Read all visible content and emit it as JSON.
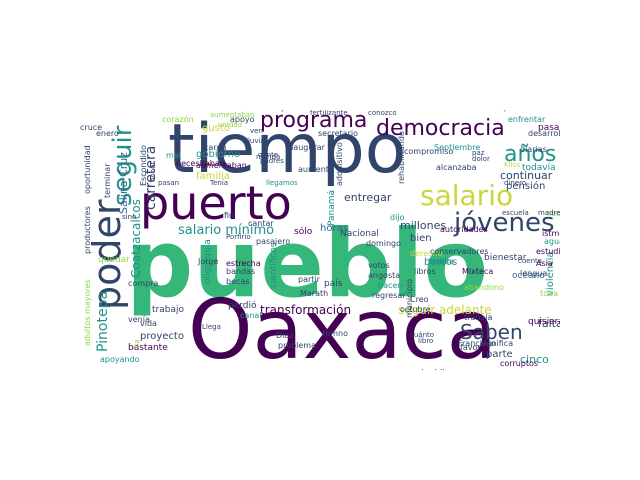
{
  "palette": {
    "dark_purple": "#440154",
    "navy": "#31446b",
    "blue": "#30688d",
    "teal": "#21918c",
    "green": "#35b779",
    "lime": "#8fd744",
    "yellow": "#c8d83a"
  },
  "words": [
    {
      "text": "pueblo",
      "color": "#35b779"
    },
    {
      "text": "Oaxaca",
      "color": "#440154"
    },
    {
      "text": "tiempo",
      "color": "#31446b"
    },
    {
      "text": "puerto",
      "color": "#440154"
    },
    {
      "text": "poder",
      "color": "#31446b"
    },
    {
      "text": "programa",
      "color": "#440154"
    },
    {
      "text": "democracia",
      "color": "#440154"
    },
    {
      "text": "salario",
      "color": "#c8d83a"
    },
    {
      "text": "jóvenes",
      "color": "#31446b"
    },
    {
      "text": "Saben",
      "color": "#31446b"
    },
    {
      "text": "años",
      "color": "#21918c"
    },
    {
      "text": "seguir",
      "color": "#21918c"
    },
    {
      "text": "salario mínimo",
      "color": "#21918c"
    },
    {
      "text": "transformación",
      "color": "#440154"
    },
    {
      "text": "seguir adelante",
      "color": "#c8d83a"
    },
    {
      "text": "Pinotepa",
      "color": "#21918c"
    },
    {
      "text": "carretera",
      "color": "#31446b"
    },
    {
      "text": "gobierno",
      "color": "#21918c"
    },
    {
      "text": "familia",
      "color": "#c8d83a"
    },
    {
      "text": "continuar",
      "color": "#31446b"
    },
    {
      "text": "pensión",
      "color": "#31446b"
    },
    {
      "text": "millones",
      "color": "#31446b"
    },
    {
      "text": "entregar",
      "color": "#31446b"
    },
    {
      "text": "Nacional",
      "color": "#31446b"
    },
    {
      "text": "barcos",
      "color": "#21918c"
    },
    {
      "text": "horas",
      "color": "#30688d"
    },
    {
      "text": "bien",
      "color": "#31446b"
    },
    {
      "text": "cinco",
      "color": "#21918c"
    },
    {
      "text": "falta",
      "color": "#31446b"
    },
    {
      "text": "parte",
      "color": "#31446b"
    },
    {
      "text": "Coatzacalcos",
      "color": "#21918c"
    },
    {
      "text": "Salina Cruz",
      "color": "#30688d"
    },
    {
      "text": "camino",
      "color": "#8fd744"
    },
    {
      "text": "proyecto",
      "color": "#31446b"
    },
    {
      "text": "bastante",
      "color": "#440154"
    },
    {
      "text": "trabajo",
      "color": "#31446b"
    },
    {
      "text": "oligarquía",
      "color": "#21918c"
    },
    {
      "text": "científicos",
      "color": "#21918c"
    },
    {
      "text": "violencia",
      "color": "#21918c"
    },
    {
      "text": "océano",
      "color": "#30688d"
    },
    {
      "text": "bienestar",
      "color": "#31446b"
    },
    {
      "text": "Mixteca",
      "color": "#440154"
    },
    {
      "text": "istmo",
      "color": "#440154"
    },
    {
      "text": "todavía",
      "color": "#21918c"
    },
    {
      "text": "pasar",
      "color": "#440154"
    },
    {
      "text": "desarrollo",
      "color": "#31446b"
    },
    {
      "text": "municipio",
      "color": "#31446b"
    },
    {
      "text": "apoyando",
      "color": "#21918c"
    },
    {
      "text": "productores",
      "color": "#31446b"
    },
    {
      "text": "adultos mayores",
      "color": "#8fd744"
    },
    {
      "text": "oportunidad",
      "color": "#31446b"
    },
    {
      "text": "mal",
      "color": "#21918c"
    },
    {
      "text": "gusto",
      "color": "#c8d83a"
    },
    {
      "text": "aumentaban",
      "color": "#440154"
    },
    {
      "text": "necesitaban",
      "color": "#440154"
    },
    {
      "text": "aumento",
      "color": "#31446b"
    },
    {
      "text": "sólo",
      "color": "#440154"
    },
    {
      "text": "Panamá",
      "color": "#21918c"
    },
    {
      "text": "país",
      "color": "#31446b"
    },
    {
      "text": "domingo",
      "color": "#31446b"
    },
    {
      "text": "libros",
      "color": "#31446b"
    },
    {
      "text": "decidir",
      "color": "#31446b"
    },
    {
      "text": "tren",
      "color": "#21918c"
    },
    {
      "text": "derecho",
      "color": "#c8d83a"
    },
    {
      "text": "quisieran",
      "color": "#440154"
    },
    {
      "text": "corruptos",
      "color": "#440154"
    },
    {
      "text": "significa",
      "color": "#31446b"
    },
    {
      "text": "Asia",
      "color": "#440154"
    },
    {
      "text": "agua",
      "color": "#21918c"
    },
    {
      "text": "estudio",
      "color": "#440154"
    },
    {
      "text": "toda",
      "color": "#8fd744"
    },
    {
      "text": "necesito",
      "color": "#8fd744"
    },
    {
      "text": "dijo",
      "color": "#21918c"
    },
    {
      "text": "autoridades",
      "color": "#440154"
    },
    {
      "text": "corazón",
      "color": "#8fd744"
    },
    {
      "text": "apoyo",
      "color": "#31446b"
    },
    {
      "text": "comprar",
      "color": "#440154"
    },
    {
      "text": "justicia",
      "color": "#21918c"
    },
    {
      "text": "enfrentar",
      "color": "#21918c"
    },
    {
      "text": "diarias",
      "color": "#31446b"
    },
    {
      "text": "secretario",
      "color": "#31446b"
    },
    {
      "text": "carga",
      "color": "#31446b"
    },
    {
      "text": "inaugurar",
      "color": "#31446b"
    },
    {
      "text": "compromiso",
      "color": "#31446b"
    },
    {
      "text": "terminar",
      "color": "#31446b"
    },
    {
      "text": "quedar",
      "color": "#8fd744"
    },
    {
      "text": "cruce",
      "color": "#31446b"
    },
    {
      "text": "compra",
      "color": "#31446b"
    },
    {
      "text": "venía",
      "color": "#31446b"
    },
    {
      "text": "vida",
      "color": "#31446b"
    },
    {
      "text": "canal",
      "color": "#21918c"
    },
    {
      "text": "perdió",
      "color": "#31446b"
    },
    {
      "text": "Jorge",
      "color": "#31446b"
    },
    {
      "text": "bandas",
      "color": "#31446b"
    },
    {
      "text": "becas",
      "color": "#31446b"
    },
    {
      "text": "estrecha",
      "color": "#440154"
    },
    {
      "text": "partir",
      "color": "#31446b"
    },
    {
      "text": "Marath",
      "color": "#31446b"
    },
    {
      "text": "angosta",
      "color": "#31446b"
    },
    {
      "text": "votos",
      "color": "#31446b"
    },
    {
      "text": "hacen",
      "color": "#21918c"
    },
    {
      "text": "regresar",
      "color": "#31446b"
    },
    {
      "text": "octubre",
      "color": "#31446b"
    },
    {
      "text": "trabaja",
      "color": "#31446b"
    },
    {
      "text": "abandono",
      "color": "#8fd744"
    },
    {
      "text": "Francisco",
      "color": "#31446b"
    },
    {
      "text": "favor",
      "color": "#31446b"
    },
    {
      "text": "lengua",
      "color": "#31446b"
    },
    {
      "text": "cuenta",
      "color": "#31446b"
    },
    {
      "text": "alcanzaba",
      "color": "#31446b"
    },
    {
      "text": "cantar",
      "color": "#31446b"
    },
    {
      "text": "fin",
      "color": "#31446b"
    },
    {
      "text": "pasajero",
      "color": "#31446b"
    },
    {
      "text": "Porfirio",
      "color": "#31446b"
    },
    {
      "text": "ven",
      "color": "#31446b"
    },
    {
      "text": "lluvia",
      "color": "#31446b"
    },
    {
      "text": "padres",
      "color": "#31446b"
    },
    {
      "text": "manda",
      "color": "#31446b"
    },
    {
      "text": "gente",
      "color": "#31446b"
    },
    {
      "text": "Escondido",
      "color": "#31446b"
    },
    {
      "text": "honor",
      "color": "#31446b"
    },
    {
      "text": "pasan",
      "color": "#31446b"
    },
    {
      "text": "enero",
      "color": "#31446b"
    },
    {
      "text": "sino",
      "color": "#31446b"
    },
    {
      "text": "Creo",
      "color": "#31446b"
    },
    {
      "text": "Díaz",
      "color": "#31446b"
    },
    {
      "text": "problema",
      "color": "#31446b"
    },
    {
      "text": "Himno",
      "color": "#31446b"
    },
    {
      "text": "Llega",
      "color": "#31446b"
    },
    {
      "text": "libro",
      "color": "#31446b"
    },
    {
      "text": "cuánto",
      "color": "#31446b"
    },
    {
      "text": "Kilos",
      "color": "#c8d83a"
    },
    {
      "text": "tortilla",
      "color": "#21918c"
    },
    {
      "text": "conservadores",
      "color": "#31446b"
    },
    {
      "text": "escuela",
      "color": "#31446b"
    },
    {
      "text": "madres",
      "color": "#31446b"
    },
    {
      "text": "dinero",
      "color": "#31446b"
    },
    {
      "text": "dolor",
      "color": "#31446b"
    },
    {
      "text": "paz",
      "color": "#31446b"
    },
    {
      "text": "Septiembre",
      "color": "#21918c"
    },
    {
      "text": "adquisitivo",
      "color": "#31446b"
    },
    {
      "text": "rehabilitando",
      "color": "#31446b"
    },
    {
      "text": "fertilizante",
      "color": "#31446b"
    },
    {
      "text": "conozco",
      "color": "#31446b"
    },
    {
      "text": "unidad",
      "color": "#8fd744"
    },
    {
      "text": "Tenía",
      "color": "#31446b"
    },
    {
      "text": "aumentaban",
      "color": "#8fd744"
    },
    {
      "text": "llegamos",
      "color": "#21918c"
    },
    {
      "text": "ha",
      "color": "#8fd744"
    }
  ]
}
